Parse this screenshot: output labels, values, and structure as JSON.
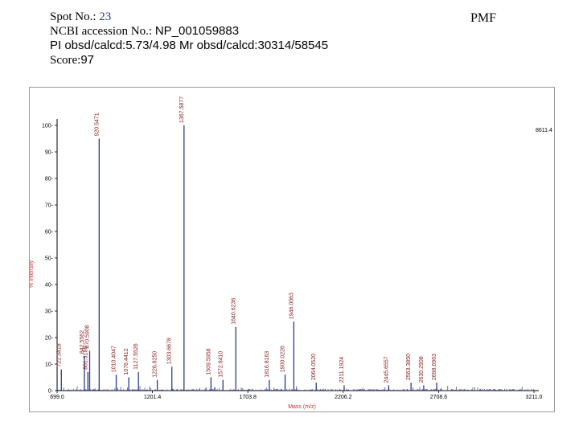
{
  "header": {
    "spot_label": "Spot No.: ",
    "spot_value": "23",
    "ncbi_label": "NCBI accession No.: ",
    "ncbi_value": "NP_001059883",
    "pi_line": "PI obsd/calcd:5.73/4.98 Mr obsd/calcd:30314/58545",
    "score_label": "Score:",
    "score_value": "97",
    "pmf": "PMF"
  },
  "colors": {
    "peaks": "#2b3a8a",
    "labels": "#8b2020",
    "axis_title": "#c83232",
    "frame": "#9a9a9a"
  },
  "chart_data": {
    "type": "bar",
    "title": "",
    "xlabel": "Mass (m/z)",
    "ylabel": "% Intensity",
    "xlim": [
      699.0,
      3211.0
    ],
    "ylim": [
      0,
      100
    ],
    "x_ticks": [
      "699.0",
      "1201.4",
      "1703.8",
      "2206.2",
      "2708.6",
      "3211.0"
    ],
    "y_ticks": [
      "0",
      "10",
      "20",
      "30",
      "40",
      "50",
      "60",
      "70",
      "80",
      "90",
      "100"
    ],
    "max_label": "8611.4",
    "peaks": [
      {
        "x": 721.3418,
        "y": 8,
        "label": "721.3418"
      },
      {
        "x": 842.5562,
        "y": 13,
        "label": "842.5562"
      },
      {
        "x": 861.3186,
        "y": 7,
        "label": "861.3186"
      },
      {
        "x": 870.5908,
        "y": 15,
        "label": "870.5908"
      },
      {
        "x": 920.5471,
        "y": 95,
        "label": "920.5471"
      },
      {
        "x": 1010.4047,
        "y": 6,
        "label": "1010.4047"
      },
      {
        "x": 1076.4412,
        "y": 5,
        "label": "1076.4412"
      },
      {
        "x": 1127.5526,
        "y": 7,
        "label": "1127.5526"
      },
      {
        "x": 1226.825,
        "y": 4,
        "label": "1226.8250"
      },
      {
        "x": 1303.6678,
        "y": 9,
        "label": "1303.6678"
      },
      {
        "x": 1367.5877,
        "y": 100,
        "label": "1367.5877"
      },
      {
        "x": 1509.5958,
        "y": 5,
        "label": "1509.5958"
      },
      {
        "x": 1572.841,
        "y": 4,
        "label": "1572.8410"
      },
      {
        "x": 1640.6236,
        "y": 24,
        "label": "1640.6236"
      },
      {
        "x": 1816.8163,
        "y": 4,
        "label": "1816.8163"
      },
      {
        "x": 1900.0226,
        "y": 6,
        "label": "1900.0226"
      },
      {
        "x": 1946.0063,
        "y": 26,
        "label": "1946.0063"
      },
      {
        "x": 2064.052,
        "y": 3,
        "label": "2064.0520"
      },
      {
        "x": 2211.1924,
        "y": 2,
        "label": "2211.1924"
      },
      {
        "x": 2445.6557,
        "y": 2,
        "label": "2445.6557"
      },
      {
        "x": 2563.385,
        "y": 3,
        "label": "2563.3850"
      },
      {
        "x": 2630.2908,
        "y": 2,
        "label": "2630.2908"
      },
      {
        "x": 2698.6963,
        "y": 3,
        "label": "2698.6963"
      }
    ]
  }
}
